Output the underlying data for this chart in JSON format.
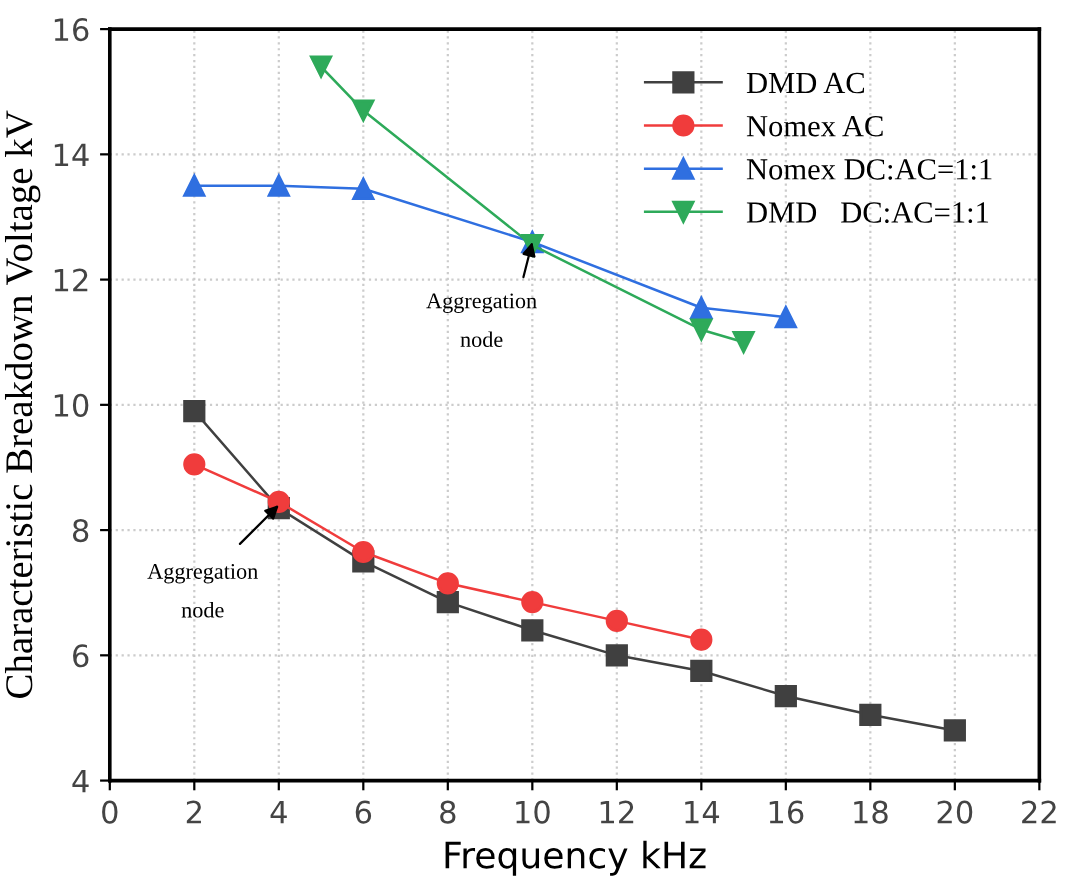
{
  "chart_data": {
    "type": "line",
    "xlabel": "Frequency kHz",
    "ylabel": "Characteristic Breakdown Voltage kV",
    "xlim": [
      0,
      22
    ],
    "xticks": [
      0,
      2,
      4,
      6,
      8,
      10,
      12,
      14,
      16,
      18,
      20,
      22
    ],
    "ylim": [
      4,
      16
    ],
    "yticks": [
      4,
      6,
      8,
      10,
      12,
      14,
      16
    ],
    "grid": true,
    "legend": "top right",
    "line_style": "solid",
    "series": [
      {
        "name": "DMD AC",
        "color": "#404040",
        "marker": "square",
        "x": [
          2,
          4,
          6,
          8,
          10,
          12,
          14,
          16,
          18,
          20
        ],
        "values": [
          9.9,
          8.35,
          7.5,
          6.85,
          6.4,
          6.0,
          5.75,
          5.35,
          5.05,
          4.8
        ]
      },
      {
        "name": "Nomex AC",
        "color": "#f03c3c",
        "marker": "circle",
        "x": [
          2,
          4,
          6,
          8,
          10,
          12,
          14
        ],
        "values": [
          9.05,
          8.45,
          7.65,
          7.15,
          6.85,
          6.55,
          6.25
        ]
      },
      {
        "name": "Nomex DC:AC=1:1",
        "color": "#2f6fe0",
        "marker": "triangle",
        "x": [
          2,
          4,
          6,
          10,
          14,
          16
        ],
        "values": [
          13.5,
          13.5,
          13.45,
          12.6,
          11.55,
          11.4
        ]
      },
      {
        "name": "DMD   DC:AC=1:1",
        "color": "#2eaa5a",
        "marker": "triangle_down",
        "x": [
          5,
          6,
          10,
          14,
          15
        ],
        "values": [
          15.4,
          14.7,
          12.55,
          11.2,
          11.0
        ]
      }
    ],
    "annotations": [
      {
        "text": "Aggregation\nnode",
        "x": 10,
        "y": 12.6
      },
      {
        "text": "Aggregation\nnode",
        "x": 4,
        "y": 8.4
      }
    ]
  }
}
